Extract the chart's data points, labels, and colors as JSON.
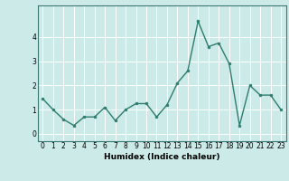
{
  "x": [
    0,
    1,
    2,
    3,
    4,
    5,
    6,
    7,
    8,
    9,
    10,
    11,
    12,
    13,
    14,
    15,
    16,
    17,
    18,
    19,
    20,
    21,
    22,
    23
  ],
  "y": [
    1.45,
    1.0,
    0.6,
    0.35,
    0.7,
    0.7,
    1.1,
    0.55,
    1.0,
    1.25,
    1.25,
    0.7,
    1.2,
    2.1,
    2.6,
    4.65,
    3.6,
    3.75,
    2.9,
    0.35,
    2.0,
    1.6,
    1.6,
    1.0
  ],
  "line_color": "#2e7d6e",
  "marker": "o",
  "marker_size": 2,
  "line_width": 1.0,
  "bg_color": "#cceae7",
  "grid_color": "#ffffff",
  "xlabel": "Humidex (Indice chaleur)",
  "ylim": [
    -0.3,
    5.3
  ],
  "xlim": [
    -0.5,
    23.5
  ],
  "yticks": [
    0,
    1,
    2,
    3,
    4
  ],
  "xticks": [
    0,
    1,
    2,
    3,
    4,
    5,
    6,
    7,
    8,
    9,
    10,
    11,
    12,
    13,
    14,
    15,
    16,
    17,
    18,
    19,
    20,
    21,
    22,
    23
  ],
  "xlabel_fontsize": 6.5,
  "tick_fontsize": 5.5,
  "spine_color": "#3d7a75"
}
